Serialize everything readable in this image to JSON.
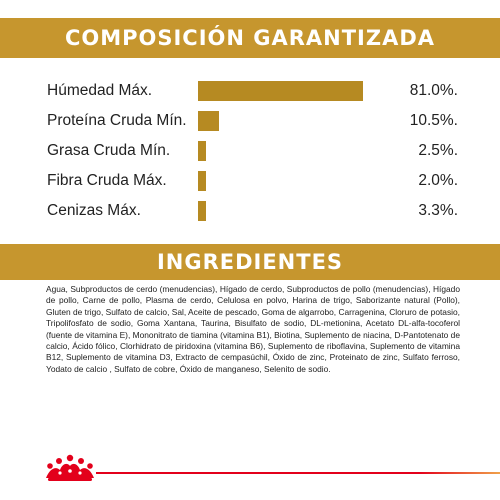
{
  "composition": {
    "title": "COMPOSICIÓN GARANTIZADA",
    "items": [
      {
        "label": "Húmedad Máx.",
        "value": "81.0%.",
        "percent": 81.0
      },
      {
        "label": "Proteína Cruda Mín.",
        "value": "10.5%.",
        "percent": 10.5
      },
      {
        "label": "Grasa Cruda Mín.",
        "value": "2.5%.",
        "percent": 2.5
      },
      {
        "label": "Fibra Cruda Máx.",
        "value": "2.0%.",
        "percent": 2.0
      },
      {
        "label": "Cenizas Máx.",
        "value": "3.3%.",
        "percent": 3.3
      }
    ],
    "bar_color": "#b68a22"
  },
  "ingredients": {
    "title": "INGREDIENTES",
    "text": "Agua, Subproductos de cerdo (menudencias), Hígado de cerdo, Subproductos de pollo (menudencias), Hígado de pollo, Carne de pollo, Plasma de cerdo, Celulosa en polvo, Harina de trigo, Saborizante natural (Pollo), Gluten de trigo, Sulfato de calcio, Sal, Aceite de pescado, Goma de algarrobo, Carragenina, Cloruro de potasio, Tripolifosfato de sodio, Goma Xantana, Taurina, Bisulfato de sodio, DL-metionina, Acetato DL-alfa-tocoferol (fuente de vitamina E), Mononitrato de tiamina (vitamina B1), Biotina, Suplemento de niacina, D-Pantotenato de calcio, Ácido fólico, Clorhidrato de piridoxina (vitamina B6), Suplemento de riboflavina, Suplemento de vitamina B12, Suplemento de vitamina D3, Extracto de cempasúchil, Óxido de zinc, Proteinato de zinc, Sulfato ferroso, Yodato de calcio , Sulfato de cobre, Óxido de manganeso, Selenito de sodio."
  },
  "colors": {
    "band": "#c6962e",
    "bar": "#b68a22",
    "brand_red": "#e3001b"
  },
  "footer": {
    "logo_icon": "royal-canin-crown-icon"
  }
}
